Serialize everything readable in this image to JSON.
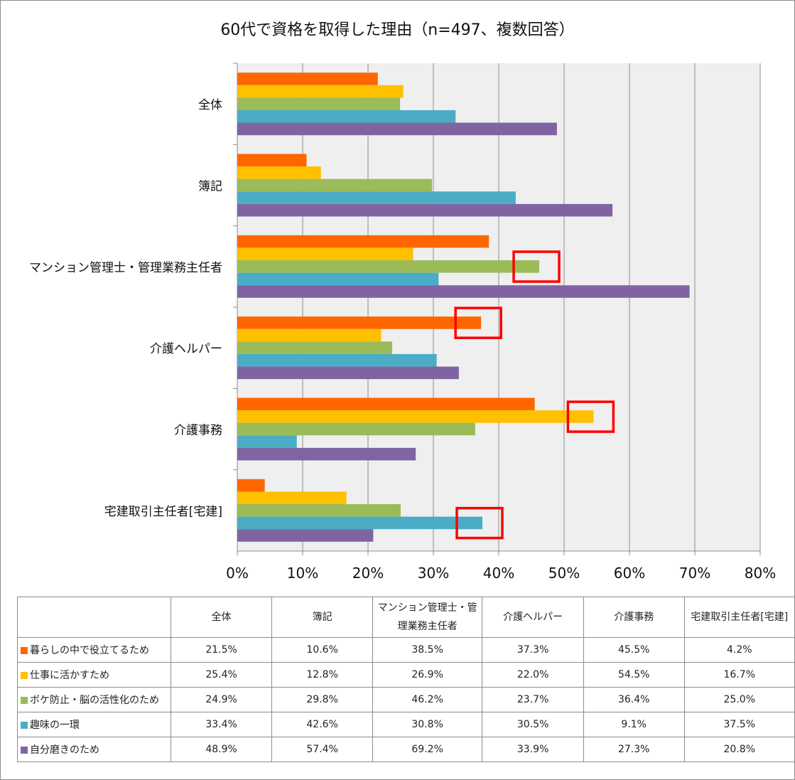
{
  "chart_data": {
    "type": "bar",
    "orientation": "horizontal",
    "title": "60代で資格を取得した理由（n=497、複数回答）",
    "categories": [
      "全体",
      "簿記",
      "マンション管理士・管理業務主任者",
      "介護ヘルパー",
      "介護事務",
      "宅建取引主任者[宅建]"
    ],
    "table_headers": [
      "全体",
      "簿記",
      "マンション管理士・管理業務主任者",
      "介護ヘルパー",
      "介護事務",
      "宅建取引主任者[宅建]"
    ],
    "series": [
      {
        "name": "暮らしの中で役立てるため",
        "color": "#ff6600",
        "values": [
          21.5,
          10.6,
          38.5,
          37.3,
          45.5,
          4.2
        ]
      },
      {
        "name": "仕事に活かすため",
        "color": "#ffc000",
        "values": [
          25.4,
          12.8,
          26.9,
          22.0,
          54.5,
          16.7
        ]
      },
      {
        "name": "ボケ防止・脳の活性化のため",
        "color": "#9bbb59",
        "values": [
          24.9,
          29.8,
          46.2,
          23.7,
          36.4,
          25.0
        ]
      },
      {
        "name": "趣味の一環",
        "color": "#4bacc6",
        "values": [
          33.4,
          42.6,
          30.8,
          30.5,
          9.1,
          37.5
        ]
      },
      {
        "name": "自分磨きのため",
        "color": "#8064a2",
        "values": [
          48.9,
          57.4,
          69.2,
          33.9,
          27.3,
          20.8
        ]
      }
    ],
    "xlim": [
      0,
      80
    ],
    "xticks": [
      "0%",
      "10%",
      "20%",
      "30%",
      "40%",
      "50%",
      "60%",
      "70%",
      "80%"
    ],
    "grid": true,
    "legend": "data table below chart",
    "highlights": [
      {
        "category": 2,
        "series": 2
      },
      {
        "category": 3,
        "series": 0
      },
      {
        "category": 4,
        "series": 1
      },
      {
        "category": 5,
        "series": 3
      }
    ],
    "highlight_color": "#ff0000"
  }
}
